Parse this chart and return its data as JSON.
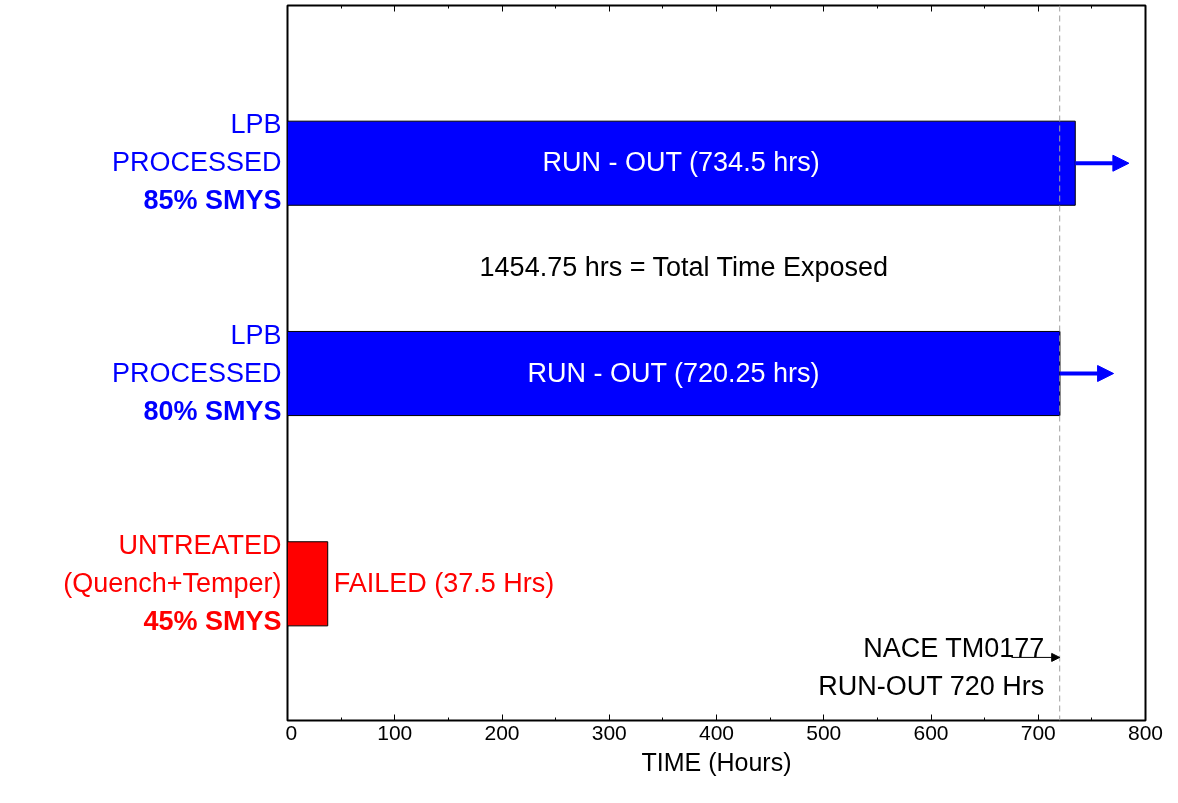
{
  "chart_data": {
    "type": "bar",
    "orientation": "horizontal",
    "xlabel": "TIME (Hours)",
    "categories": [
      "LPB\nPROCESSED\n85% SMYS",
      "LPB\nPROCESSED\n80% SMYS",
      "UNTREATED\n(Quench+Temper)\n45% SMYS"
    ],
    "values": [
      734.5,
      720.25,
      37.5
    ],
    "colors": [
      "#0000ff",
      "#0000ff",
      "#ff0000"
    ],
    "value_labels": [
      "RUN - OUT (734.5 hrs)",
      "RUN - OUT (720.25 hrs)",
      "FAILED (37.5 Hrs)"
    ],
    "annotations": [
      "1454.75 hrs = Total Time Exposed"
    ],
    "ref_lines": [
      {
        "axis": "x",
        "value": 720,
        "label": "NACE TM0177\nRUN-OUT 720 Hrs",
        "color": "#a0a0a0",
        "line_style": "dashed"
      }
    ],
    "xlim": [
      0,
      800
    ],
    "xticks": [
      0,
      100,
      200,
      300,
      400,
      500,
      600,
      700,
      800
    ],
    "grid": false
  }
}
